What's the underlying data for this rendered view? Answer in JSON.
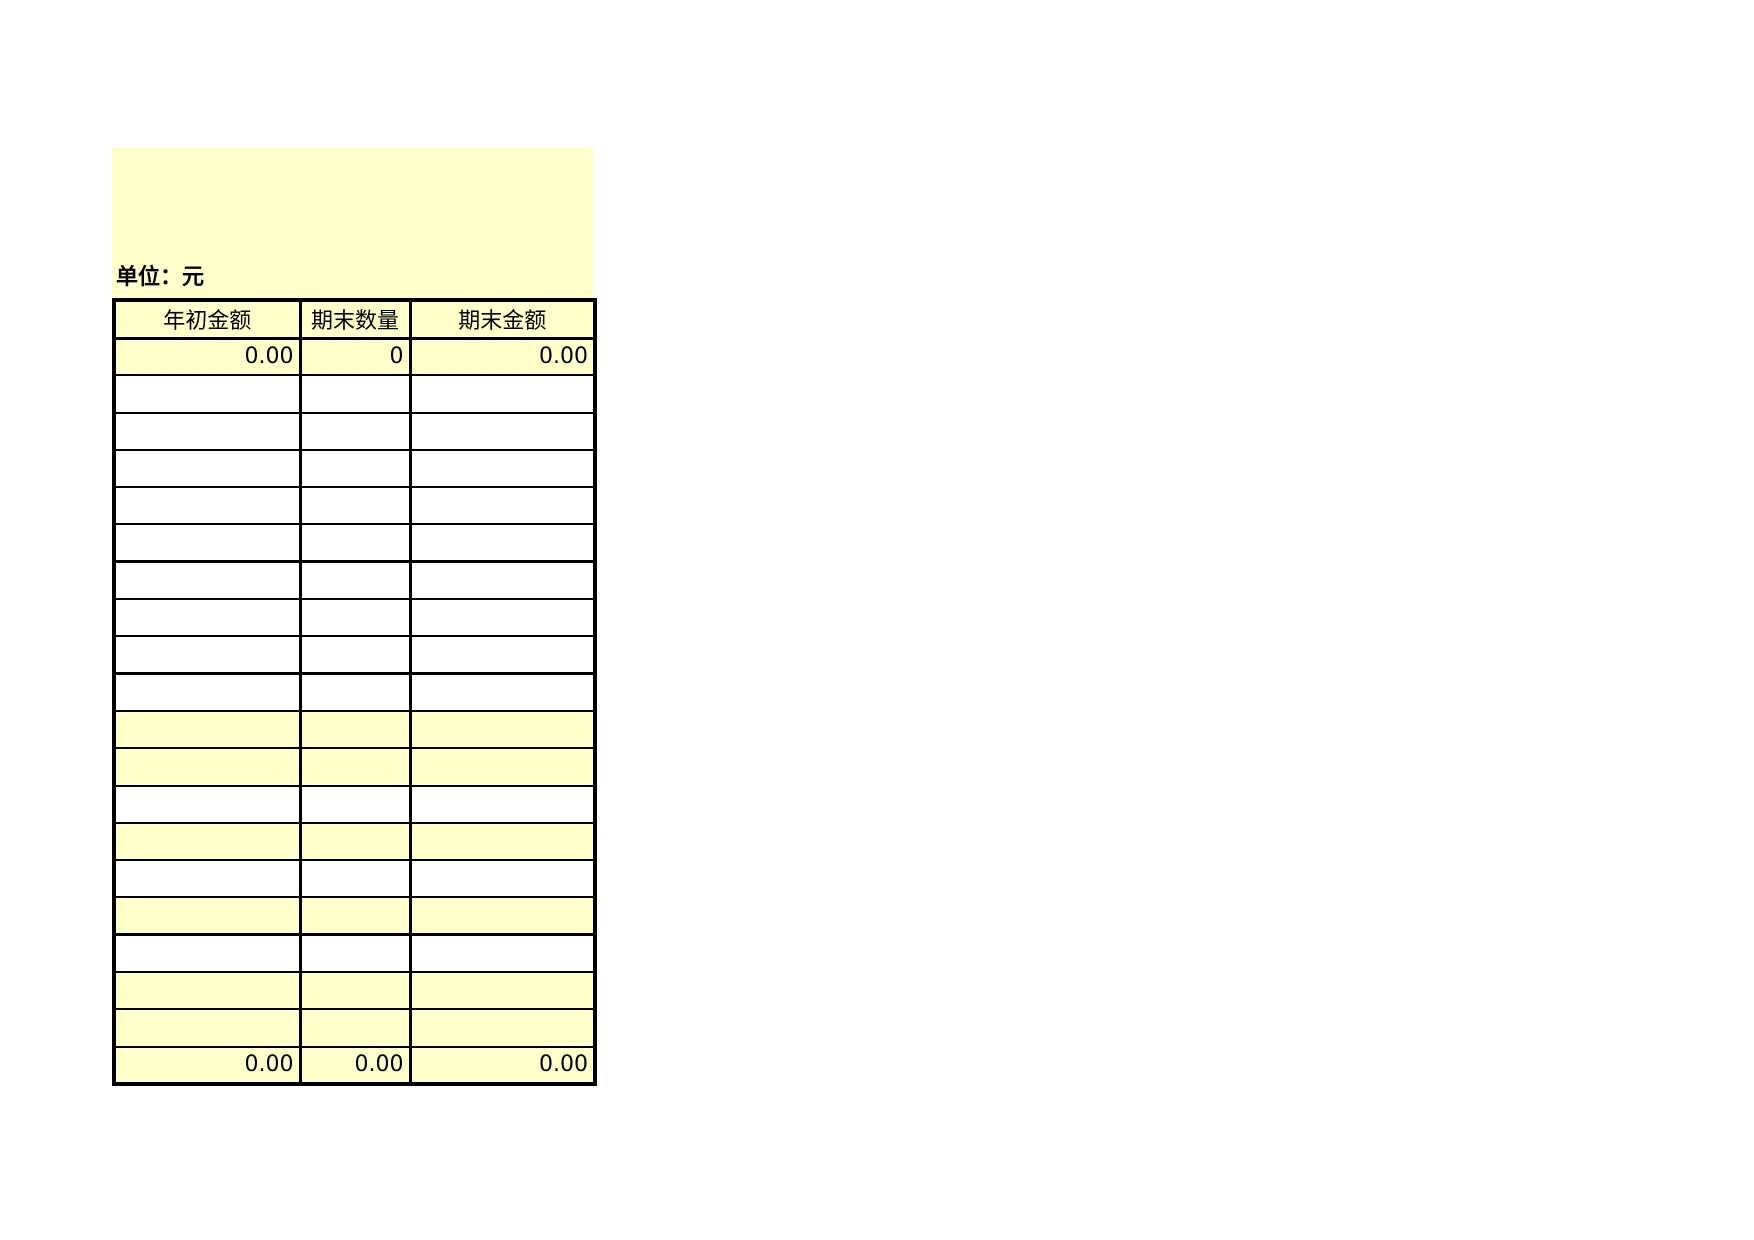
{
  "banner": {
    "unit_label": "单位：元"
  },
  "colors": {
    "highlight": "#FFFFCC",
    "border": "#000000",
    "text": "#000000",
    "page_background": "#FFFFFF"
  },
  "table": {
    "columns": [
      {
        "label": "年初金额"
      },
      {
        "label": "期末数量"
      },
      {
        "label": "期末金额"
      }
    ],
    "rows": [
      {
        "cells": [
          "0.00",
          "0",
          "0.00"
        ],
        "highlight": true,
        "section_end": false
      },
      {
        "cells": [
          "",
          "",
          ""
        ],
        "highlight": false,
        "section_end": false
      },
      {
        "cells": [
          "",
          "",
          ""
        ],
        "highlight": false,
        "section_end": false
      },
      {
        "cells": [
          "",
          "",
          ""
        ],
        "highlight": false,
        "section_end": false
      },
      {
        "cells": [
          "",
          "",
          ""
        ],
        "highlight": false,
        "section_end": false
      },
      {
        "cells": [
          "",
          "",
          ""
        ],
        "highlight": false,
        "section_end": true
      },
      {
        "cells": [
          "",
          "",
          ""
        ],
        "highlight": false,
        "section_end": false
      },
      {
        "cells": [
          "",
          "",
          ""
        ],
        "highlight": false,
        "section_end": false
      },
      {
        "cells": [
          "",
          "",
          ""
        ],
        "highlight": false,
        "section_end": true
      },
      {
        "cells": [
          "",
          "",
          ""
        ],
        "highlight": false,
        "section_end": false
      },
      {
        "cells": [
          "",
          "",
          ""
        ],
        "highlight": true,
        "section_end": false
      },
      {
        "cells": [
          "",
          "",
          ""
        ],
        "highlight": true,
        "section_end": false
      },
      {
        "cells": [
          "",
          "",
          ""
        ],
        "highlight": false,
        "section_end": false
      },
      {
        "cells": [
          "",
          "",
          ""
        ],
        "highlight": true,
        "section_end": false
      },
      {
        "cells": [
          "",
          "",
          ""
        ],
        "highlight": false,
        "section_end": false
      },
      {
        "cells": [
          "",
          "",
          ""
        ],
        "highlight": true,
        "section_end": true
      },
      {
        "cells": [
          "",
          "",
          ""
        ],
        "highlight": false,
        "section_end": false
      },
      {
        "cells": [
          "",
          "",
          ""
        ],
        "highlight": true,
        "section_end": false
      },
      {
        "cells": [
          "",
          "",
          ""
        ],
        "highlight": true,
        "section_end": false
      },
      {
        "cells": [
          "0.00",
          "0.00",
          "0.00"
        ],
        "highlight": true,
        "section_end": false
      }
    ]
  }
}
